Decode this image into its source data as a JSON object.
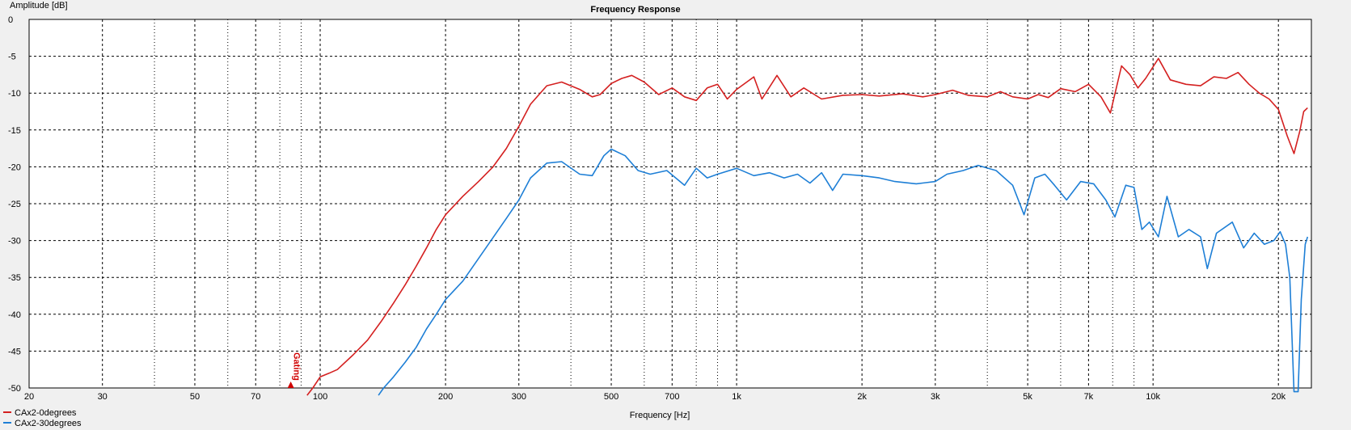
{
  "chart_data": {
    "type": "line",
    "title": "Frequency Response",
    "xlabel": "Frequency [Hz]",
    "ylabel": "Amplitude [dB]",
    "x_scale": "log",
    "xlim": [
      20,
      24000
    ],
    "ylim": [
      -50,
      0
    ],
    "grid": true,
    "legend": "bottom-left",
    "x_ticks": [
      {
        "value": 20,
        "label": "20"
      },
      {
        "value": 30,
        "label": "30"
      },
      {
        "value": 50,
        "label": "50"
      },
      {
        "value": 70,
        "label": "70"
      },
      {
        "value": 100,
        "label": "100"
      },
      {
        "value": 200,
        "label": "200"
      },
      {
        "value": 300,
        "label": "300"
      },
      {
        "value": 500,
        "label": "500"
      },
      {
        "value": 700,
        "label": "700"
      },
      {
        "value": 1000,
        "label": "1k"
      },
      {
        "value": 2000,
        "label": "2k"
      },
      {
        "value": 3000,
        "label": "3k"
      },
      {
        "value": 5000,
        "label": "5k"
      },
      {
        "value": 7000,
        "label": "7k"
      },
      {
        "value": 10000,
        "label": "10k"
      },
      {
        "value": 20000,
        "label": "20k"
      }
    ],
    "x_minor_gridlines": [
      40,
      60,
      80,
      90,
      400,
      600,
      800,
      900,
      4000,
      6000,
      8000,
      9000
    ],
    "y_ticks": [
      0,
      -5,
      -10,
      -15,
      -20,
      -25,
      -30,
      -35,
      -40,
      -45,
      -50
    ],
    "annotation": {
      "text": "Gating",
      "x": 85,
      "color": "#d00000"
    },
    "series": [
      {
        "name": "CAx2-0degrees",
        "color": "#d42020",
        "points": [
          [
            93,
            -51
          ],
          [
            96,
            -50
          ],
          [
            100,
            -48.5
          ],
          [
            105,
            -48
          ],
          [
            110,
            -47.5
          ],
          [
            120,
            -45.5
          ],
          [
            130,
            -43.5
          ],
          [
            140,
            -41
          ],
          [
            150,
            -38.5
          ],
          [
            160,
            -36
          ],
          [
            170,
            -33.5
          ],
          [
            180,
            -31
          ],
          [
            190,
            -28.5
          ],
          [
            200,
            -26.5
          ],
          [
            220,
            -24
          ],
          [
            240,
            -22
          ],
          [
            260,
            -20
          ],
          [
            280,
            -17.5
          ],
          [
            300,
            -14.5
          ],
          [
            320,
            -11.5
          ],
          [
            350,
            -9
          ],
          [
            380,
            -8.5
          ],
          [
            420,
            -9.5
          ],
          [
            450,
            -10.5
          ],
          [
            470,
            -10.2
          ],
          [
            500,
            -8.7
          ],
          [
            530,
            -8.0
          ],
          [
            560,
            -7.6
          ],
          [
            600,
            -8.5
          ],
          [
            650,
            -10.2
          ],
          [
            700,
            -9.3
          ],
          [
            750,
            -10.5
          ],
          [
            800,
            -11
          ],
          [
            850,
            -9.3
          ],
          [
            900,
            -8.8
          ],
          [
            950,
            -10.8
          ],
          [
            1000,
            -9.5
          ],
          [
            1100,
            -7.8
          ],
          [
            1150,
            -10.8
          ],
          [
            1250,
            -7.6
          ],
          [
            1350,
            -10.5
          ],
          [
            1450,
            -9.3
          ],
          [
            1600,
            -10.8
          ],
          [
            1800,
            -10.3
          ],
          [
            2000,
            -10.2
          ],
          [
            2200,
            -10.4
          ],
          [
            2500,
            -10.1
          ],
          [
            2800,
            -10.5
          ],
          [
            3000,
            -10.2
          ],
          [
            3300,
            -9.6
          ],
          [
            3600,
            -10.3
          ],
          [
            4000,
            -10.5
          ],
          [
            4300,
            -9.8
          ],
          [
            4600,
            -10.5
          ],
          [
            5000,
            -10.8
          ],
          [
            5300,
            -10.2
          ],
          [
            5600,
            -10.6
          ],
          [
            6000,
            -9.4
          ],
          [
            6500,
            -9.8
          ],
          [
            7000,
            -8.8
          ],
          [
            7500,
            -10.5
          ],
          [
            7900,
            -12.7
          ],
          [
            8400,
            -6.3
          ],
          [
            8800,
            -7.5
          ],
          [
            9200,
            -9.3
          ],
          [
            9600,
            -8.0
          ],
          [
            10300,
            -5.3
          ],
          [
            11000,
            -8.2
          ],
          [
            12000,
            -8.8
          ],
          [
            13000,
            -9.0
          ],
          [
            14000,
            -7.8
          ],
          [
            15000,
            -8.0
          ],
          [
            16000,
            -7.2
          ],
          [
            17000,
            -8.8
          ],
          [
            18000,
            -10.0
          ],
          [
            19000,
            -10.8
          ],
          [
            20000,
            -12.2
          ],
          [
            21000,
            -15.8
          ],
          [
            21800,
            -18.2
          ],
          [
            22500,
            -15.2
          ],
          [
            23000,
            -12.5
          ],
          [
            23500,
            -12.0
          ]
        ]
      },
      {
        "name": "CAx2-30degrees",
        "color": "#1e7fd6",
        "points": [
          [
            138,
            -51
          ],
          [
            142,
            -50
          ],
          [
            150,
            -48.5
          ],
          [
            160,
            -46.5
          ],
          [
            170,
            -44.5
          ],
          [
            180,
            -42
          ],
          [
            190,
            -40
          ],
          [
            200,
            -38
          ],
          [
            220,
            -35.5
          ],
          [
            250,
            -31
          ],
          [
            280,
            -27
          ],
          [
            300,
            -24.5
          ],
          [
            320,
            -21.5
          ],
          [
            350,
            -19.5
          ],
          [
            380,
            -19.3
          ],
          [
            420,
            -21
          ],
          [
            450,
            -21.2
          ],
          [
            480,
            -18.5
          ],
          [
            500,
            -17.6
          ],
          [
            540,
            -18.5
          ],
          [
            580,
            -20.5
          ],
          [
            620,
            -21.0
          ],
          [
            680,
            -20.5
          ],
          [
            750,
            -22.5
          ],
          [
            800,
            -20.2
          ],
          [
            850,
            -21.5
          ],
          [
            900,
            -21.0
          ],
          [
            1000,
            -20.2
          ],
          [
            1100,
            -21.2
          ],
          [
            1200,
            -20.8
          ],
          [
            1300,
            -21.5
          ],
          [
            1400,
            -21.0
          ],
          [
            1500,
            -22.2
          ],
          [
            1600,
            -20.8
          ],
          [
            1700,
            -23.2
          ],
          [
            1800,
            -21.0
          ],
          [
            2000,
            -21.2
          ],
          [
            2200,
            -21.5
          ],
          [
            2400,
            -22.0
          ],
          [
            2700,
            -22.3
          ],
          [
            3000,
            -22.0
          ],
          [
            3200,
            -21.0
          ],
          [
            3500,
            -20.5
          ],
          [
            3800,
            -19.8
          ],
          [
            4200,
            -20.5
          ],
          [
            4600,
            -22.5
          ],
          [
            4900,
            -26.5
          ],
          [
            5200,
            -21.5
          ],
          [
            5500,
            -21.0
          ],
          [
            5800,
            -22.5
          ],
          [
            6200,
            -24.5
          ],
          [
            6700,
            -22.0
          ],
          [
            7200,
            -22.3
          ],
          [
            7700,
            -24.5
          ],
          [
            8100,
            -26.8
          ],
          [
            8600,
            -22.5
          ],
          [
            9000,
            -22.8
          ],
          [
            9400,
            -28.5
          ],
          [
            9800,
            -27.5
          ],
          [
            10300,
            -29.5
          ],
          [
            10800,
            -24.0
          ],
          [
            11500,
            -29.5
          ],
          [
            12200,
            -28.5
          ],
          [
            13000,
            -29.5
          ],
          [
            13500,
            -33.8
          ],
          [
            14200,
            -29.0
          ],
          [
            15500,
            -27.5
          ],
          [
            16500,
            -31.0
          ],
          [
            17500,
            -29.0
          ],
          [
            18500,
            -30.5
          ],
          [
            19500,
            -30.0
          ],
          [
            20200,
            -28.8
          ],
          [
            20800,
            -30.5
          ],
          [
            21300,
            -35.0
          ],
          [
            21800,
            -50.5
          ],
          [
            22300,
            -50.5
          ],
          [
            22700,
            -38.0
          ],
          [
            23200,
            -30.5
          ],
          [
            23500,
            -29.5
          ]
        ]
      }
    ]
  }
}
